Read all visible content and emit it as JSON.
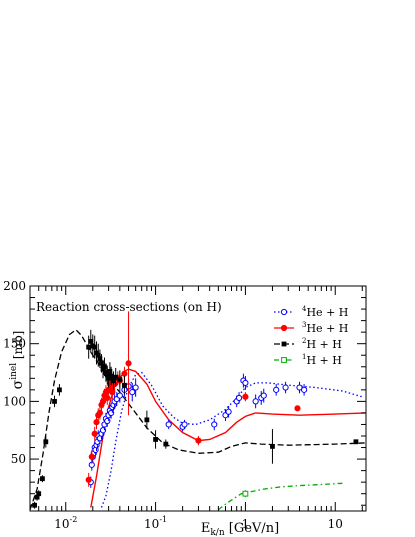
{
  "chart_data": {
    "type": "scatter",
    "title": "",
    "annotation": "Reaction cross-sections (on H)",
    "xlabel": "E",
    "xlabel_sub": "k/n",
    "xlabel_unit": " [GeV/n]",
    "ylabel": "σ",
    "ylabel_sup": "inel",
    "ylabel_unit": " [mb]",
    "xscale": "log",
    "xlim": [
      0.004,
      22
    ],
    "ylim": [
      5,
      200
    ],
    "grid": false,
    "legend_position": "top-right",
    "x_ticks": [
      {
        "value": 0.01,
        "base": "10",
        "exp": "-2"
      },
      {
        "value": 0.1,
        "base": "10",
        "exp": "-1"
      },
      {
        "value": 1,
        "base": "1",
        "exp": ""
      },
      {
        "value": 10,
        "base": "10",
        "exp": ""
      }
    ],
    "y_ticks": [
      {
        "value": 50,
        "label": "50"
      },
      {
        "value": 100,
        "label": "100"
      },
      {
        "value": 150,
        "label": "150"
      },
      {
        "value": 200,
        "label": "200"
      }
    ],
    "series": [
      {
        "name_sup": "4",
        "name_rest": "He + H",
        "color": "#0000ff",
        "marker": "open-circle",
        "line": "dotted",
        "points": [
          [
            0.019,
            30,
            5
          ],
          [
            0.0195,
            45,
            5
          ],
          [
            0.02,
            52,
            5
          ],
          [
            0.0205,
            55,
            5
          ],
          [
            0.021,
            60,
            5
          ],
          [
            0.0215,
            58,
            5
          ],
          [
            0.022,
            62,
            5
          ],
          [
            0.0225,
            65,
            5
          ],
          [
            0.023,
            70,
            5
          ],
          [
            0.024,
            68,
            5
          ],
          [
            0.025,
            72,
            5
          ],
          [
            0.026,
            75,
            5
          ],
          [
            0.027,
            80,
            5
          ],
          [
            0.028,
            85,
            5
          ],
          [
            0.029,
            83,
            5
          ],
          [
            0.03,
            88,
            5
          ],
          [
            0.031,
            92,
            5
          ],
          [
            0.032,
            90,
            5
          ],
          [
            0.033,
            95,
            5
          ],
          [
            0.034,
            97,
            5
          ],
          [
            0.035,
            100,
            6
          ],
          [
            0.037,
            102,
            6
          ],
          [
            0.04,
            105,
            6
          ],
          [
            0.045,
            110,
            6
          ],
          [
            0.05,
            113,
            6
          ],
          [
            0.055,
            108,
            8
          ],
          [
            0.06,
            112,
            8
          ],
          [
            0.14,
            80,
            4
          ],
          [
            0.2,
            78,
            4
          ],
          [
            0.21,
            80,
            4
          ],
          [
            0.45,
            80,
            5
          ],
          [
            0.6,
            88,
            5
          ],
          [
            0.65,
            91,
            5
          ],
          [
            0.8,
            100,
            5
          ],
          [
            0.85,
            103,
            5
          ],
          [
            0.95,
            118,
            6
          ],
          [
            1.0,
            116,
            6
          ],
          [
            1.3,
            100,
            6
          ],
          [
            1.5,
            103,
            6
          ],
          [
            1.6,
            105,
            6
          ],
          [
            2.2,
            110,
            5
          ],
          [
            2.8,
            112,
            5
          ],
          [
            4.0,
            112,
            5
          ],
          [
            4.5,
            110,
            5
          ]
        ],
        "curve": [
          [
            0.025,
            8
          ],
          [
            0.028,
            18
          ],
          [
            0.032,
            40
          ],
          [
            0.036,
            65
          ],
          [
            0.042,
            92
          ],
          [
            0.05,
            112
          ],
          [
            0.06,
            123
          ],
          [
            0.07,
            125
          ],
          [
            0.09,
            114
          ],
          [
            0.12,
            96
          ],
          [
            0.16,
            86
          ],
          [
            0.2,
            81
          ],
          [
            0.28,
            80
          ],
          [
            0.4,
            84
          ],
          [
            0.6,
            93
          ],
          [
            0.8,
            103
          ],
          [
            1.0,
            112
          ],
          [
            1.3,
            116
          ],
          [
            1.8,
            116
          ],
          [
            3,
            114
          ],
          [
            6,
            112
          ],
          [
            12,
            109
          ],
          [
            20,
            104
          ]
        ]
      },
      {
        "name_sup": "3",
        "name_rest": "He + H",
        "color": "#ff0000",
        "marker": "filled-circle",
        "line": "solid",
        "points": [
          [
            0.018,
            32,
            6
          ],
          [
            0.0195,
            52,
            6
          ],
          [
            0.021,
            72,
            6
          ],
          [
            0.022,
            82,
            6
          ],
          [
            0.023,
            88,
            6
          ],
          [
            0.024,
            90,
            6
          ],
          [
            0.025,
            97,
            6
          ],
          [
            0.026,
            100,
            6
          ],
          [
            0.027,
            105,
            6
          ],
          [
            0.028,
            108,
            6
          ],
          [
            0.029,
            103,
            6
          ],
          [
            0.03,
            110,
            6
          ],
          [
            0.031,
            115,
            6
          ],
          [
            0.032,
            112,
            6
          ],
          [
            0.033,
            108,
            6
          ],
          [
            0.035,
            115,
            6
          ],
          [
            0.038,
            120,
            6
          ],
          [
            0.04,
            118,
            6
          ],
          [
            0.045,
            124,
            6
          ],
          [
            0.05,
            133,
            45
          ],
          [
            0.3,
            66,
            4
          ],
          [
            1.0,
            104,
            4
          ],
          [
            3.8,
            94,
            0
          ]
        ],
        "curve": [
          [
            0.019,
            8
          ],
          [
            0.022,
            35
          ],
          [
            0.026,
            70
          ],
          [
            0.03,
            95
          ],
          [
            0.035,
            113
          ],
          [
            0.045,
            126
          ],
          [
            0.05,
            128
          ],
          [
            0.06,
            126
          ],
          [
            0.08,
            115
          ],
          [
            0.1,
            100
          ],
          [
            0.14,
            84
          ],
          [
            0.2,
            73
          ],
          [
            0.3,
            66
          ],
          [
            0.4,
            67
          ],
          [
            0.6,
            73
          ],
          [
            0.8,
            82
          ],
          [
            1.0,
            87
          ],
          [
            1.3,
            90
          ],
          [
            2,
            89
          ],
          [
            4,
            88
          ],
          [
            10,
            89
          ],
          [
            22,
            90
          ]
        ]
      },
      {
        "name_sup": "2",
        "name_rest": "H + H",
        "color": "#000000",
        "marker": "filled-square",
        "line": "dashed",
        "points": [
          [
            0.0045,
            10,
            3
          ],
          [
            0.0048,
            17,
            3
          ],
          [
            0.005,
            20,
            3
          ],
          [
            0.0055,
            33,
            3
          ],
          [
            0.006,
            65,
            5
          ],
          [
            0.0075,
            100,
            5
          ],
          [
            0.0085,
            110,
            5
          ],
          [
            0.018,
            147,
            10
          ],
          [
            0.019,
            152,
            10
          ],
          [
            0.02,
            148,
            10
          ],
          [
            0.021,
            147,
            10
          ],
          [
            0.022,
            142,
            10
          ],
          [
            0.023,
            140,
            10
          ],
          [
            0.024,
            137,
            8
          ],
          [
            0.025,
            133,
            8
          ],
          [
            0.026,
            128,
            8
          ],
          [
            0.027,
            130,
            8
          ],
          [
            0.028,
            125,
            8
          ],
          [
            0.029,
            123,
            8
          ],
          [
            0.03,
            120,
            8
          ],
          [
            0.031,
            126,
            8
          ],
          [
            0.032,
            122,
            8
          ],
          [
            0.034,
            118,
            8
          ],
          [
            0.036,
            121,
            8
          ],
          [
            0.04,
            119,
            8
          ],
          [
            0.045,
            114,
            8
          ],
          [
            0.08,
            84,
            8
          ],
          [
            0.1,
            67,
            8
          ],
          [
            0.13,
            63,
            4
          ],
          [
            2.0,
            61,
            15
          ],
          [
            17,
            65,
            2
          ]
        ],
        "curve": [
          [
            0.004,
            6
          ],
          [
            0.0048,
            24
          ],
          [
            0.0056,
            55
          ],
          [
            0.0065,
            90
          ],
          [
            0.0075,
            118
          ],
          [
            0.009,
            143
          ],
          [
            0.011,
            158
          ],
          [
            0.013,
            162
          ],
          [
            0.015,
            157
          ],
          [
            0.02,
            140
          ],
          [
            0.03,
            120
          ],
          [
            0.04,
            108
          ],
          [
            0.06,
            90
          ],
          [
            0.08,
            77
          ],
          [
            0.12,
            64
          ],
          [
            0.18,
            58
          ],
          [
            0.3,
            55
          ],
          [
            0.5,
            56
          ],
          [
            0.7,
            61
          ],
          [
            1.0,
            64
          ],
          [
            1.5,
            63
          ],
          [
            3,
            62
          ],
          [
            10,
            63
          ],
          [
            22,
            64
          ]
        ]
      },
      {
        "name_sup": "1",
        "name_rest": "H + H",
        "color": "#00b000",
        "marker": "open-square",
        "line": "dash-dot",
        "points": [
          [
            1.0,
            20,
            3
          ]
        ],
        "curve": [
          [
            0.5,
            6
          ],
          [
            0.6,
            11
          ],
          [
            0.75,
            16
          ],
          [
            0.9,
            20
          ],
          [
            1.2,
            22
          ],
          [
            1.6,
            24
          ],
          [
            2.5,
            26
          ],
          [
            4,
            27
          ],
          [
            7,
            28
          ],
          [
            12,
            29
          ]
        ]
      }
    ]
  }
}
